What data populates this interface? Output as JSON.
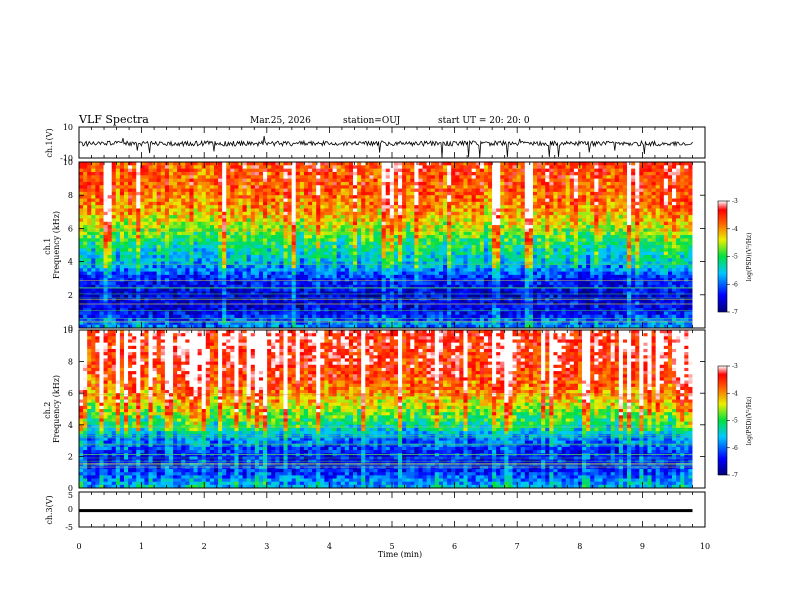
{
  "header": {
    "title": "VLF Spectra",
    "date": "Mar.25, 2026",
    "station": "station=OUJ",
    "start": "start UT = 20: 20: 0"
  },
  "chart_data": [
    {
      "type": "line",
      "name": "ch1-waveform",
      "ylabel": "ch.1(V)",
      "ylim": [
        -10,
        10
      ],
      "yticks": [
        "10",
        "-10"
      ],
      "xlim": [
        0,
        10
      ],
      "trace_end_min": 9.8
    },
    {
      "type": "heatmap",
      "name": "ch1-spectrogram",
      "ylabel": "ch.1 Frequency (kHz)",
      "ylim": [
        0,
        10
      ],
      "yticks": [
        "0",
        "2",
        "4",
        "6",
        "8",
        "10"
      ],
      "xlim": [
        0,
        10
      ],
      "data_end_min": 9.8,
      "colorbar": {
        "label": "log(PSD)(V²/Hz)",
        "range": [
          -7,
          -3
        ],
        "ticks": [
          "-3",
          "-4",
          "-5",
          "-6",
          "-7"
        ]
      },
      "profile": [
        {
          "f": 0,
          "v": -5.8
        },
        {
          "f": 0.5,
          "v": -6.1
        },
        {
          "f": 1,
          "v": -6.5
        },
        {
          "f": 2,
          "v": -6.6
        },
        {
          "f": 3,
          "v": -6.3
        },
        {
          "f": 3.5,
          "v": -5.9
        },
        {
          "f": 4,
          "v": -5.6
        },
        {
          "f": 5,
          "v": -5.2
        },
        {
          "f": 6,
          "v": -4.6
        },
        {
          "f": 7,
          "v": -4.1
        },
        {
          "f": 8,
          "v": -3.8
        },
        {
          "f": 10,
          "v": -3.6
        }
      ]
    },
    {
      "type": "heatmap",
      "name": "ch2-spectrogram",
      "ylabel": "ch.2 Frequency (kHz)",
      "ylim": [
        0,
        10
      ],
      "yticks": [
        "0",
        "2",
        "4",
        "6",
        "8",
        "10"
      ],
      "xlim": [
        0,
        10
      ],
      "data_end_min": 9.8,
      "colorbar": {
        "label": "log(PSD)(V²/Hz)",
        "range": [
          -7,
          -3
        ],
        "ticks": [
          "-3",
          "-4",
          "-5",
          "-6",
          "-7"
        ]
      },
      "profile": [
        {
          "f": 0,
          "v": -5.6
        },
        {
          "f": 0.5,
          "v": -5.9
        },
        {
          "f": 1,
          "v": -6.3
        },
        {
          "f": 2,
          "v": -6.4
        },
        {
          "f": 3,
          "v": -6.0
        },
        {
          "f": 3.5,
          "v": -5.6
        },
        {
          "f": 4,
          "v": -5.2
        },
        {
          "f": 5,
          "v": -4.6
        },
        {
          "f": 6,
          "v": -4.0
        },
        {
          "f": 7,
          "v": -3.6
        },
        {
          "f": 8,
          "v": -3.4
        },
        {
          "f": 10,
          "v": -3.3
        }
      ]
    },
    {
      "type": "line",
      "name": "ch3-waveform",
      "ylabel": "ch.3(V)",
      "ylim": [
        -5,
        5
      ],
      "yticks": [
        "5",
        "0",
        "-5"
      ],
      "xlim": [
        0,
        10
      ],
      "level_v": -0.3,
      "trace_end_min": 9.8
    }
  ],
  "xaxis": {
    "label": "Time (min)",
    "ticks": [
      "0",
      "1",
      "2",
      "3",
      "4",
      "5",
      "6",
      "7",
      "8",
      "9",
      "10"
    ]
  }
}
